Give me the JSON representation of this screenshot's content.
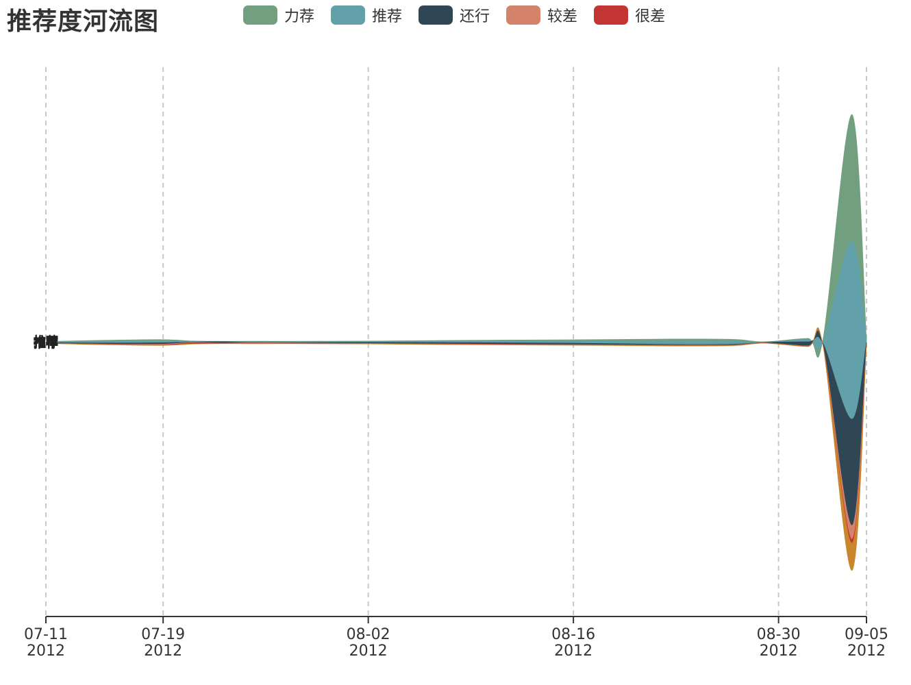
{
  "title": "推荐度河流图",
  "legend": [
    {
      "name": "力荐",
      "color": "#739f81"
    },
    {
      "name": "推荐",
      "color": "#62a0aa"
    },
    {
      "name": "还行",
      "color": "#2f4655"
    },
    {
      "name": "较差",
      "color": "#d4836a"
    },
    {
      "name": "很差",
      "color": "#c33533"
    }
  ],
  "chart_data": {
    "type": "area",
    "subtype": "themeRiver",
    "title": "推荐度河流图",
    "x_axis": {
      "type": "time",
      "range": [
        "2012-07-11",
        "2012-09-05"
      ],
      "ticks": [
        {
          "date": "2012-07-11",
          "line1": "07-11",
          "line2": "2012"
        },
        {
          "date": "2012-07-19",
          "line1": "07-19",
          "line2": "2012"
        },
        {
          "date": "2012-08-02",
          "line1": "08-02",
          "line2": "2012"
        },
        {
          "date": "2012-08-16",
          "line1": "08-16",
          "line2": "2012"
        },
        {
          "date": "2012-08-30",
          "line1": "08-30",
          "line2": "2012"
        },
        {
          "date": "2012-09-05",
          "line1": "09-05",
          "line2": "2012"
        }
      ],
      "grid_lines": "dashed"
    },
    "dates": [
      "2012-07-11",
      "2012-07-15",
      "2012-07-19",
      "2012-07-21",
      "2012-07-23",
      "2012-07-25",
      "2012-07-29",
      "2012-08-02",
      "2012-08-09",
      "2012-08-16",
      "2012-08-23",
      "2012-08-27",
      "2012-08-29",
      "2012-09-01",
      "2012-09-02",
      "2012-09-04",
      "2012-09-05"
    ],
    "series": [
      {
        "name": "力荐",
        "values": [
          0.5,
          2,
          1.5,
          0.5,
          0.3,
          0.5,
          0.8,
          1,
          1.5,
          2,
          3,
          3,
          0.5,
          2,
          0.5,
          185,
          2
        ]
      },
      {
        "name": "推荐",
        "values": [
          1,
          2,
          3,
          1,
          0.3,
          1,
          1,
          1,
          2,
          3,
          5,
          4,
          0.5,
          3,
          0.5,
          260,
          2
        ]
      },
      {
        "name": "还行",
        "values": [
          0.8,
          1.5,
          2,
          0.5,
          2,
          0.5,
          1,
          1.5,
          2,
          2,
          1,
          1,
          0.5,
          6,
          0.5,
          155,
          3
        ]
      },
      {
        "name": "较差",
        "values": [
          0.3,
          0.5,
          1,
          0.8,
          0.3,
          1,
          0.5,
          0.5,
          0.5,
          0.5,
          0.5,
          0.5,
          0.3,
          0.5,
          0.3,
          20,
          1
        ]
      },
      {
        "name": "很差",
        "values": [
          0.2,
          0.3,
          0.5,
          1.5,
          0.5,
          0.5,
          0.3,
          0.3,
          0.3,
          0.3,
          0.3,
          0.3,
          0.2,
          0.3,
          0.2,
          6,
          0.5
        ]
      },
      {
        "name": "",
        "color": "#c9862c",
        "values": [
          0.2,
          0.3,
          0.5,
          0.3,
          0.2,
          0.3,
          0.2,
          0.2,
          0.3,
          0.3,
          0.5,
          0.3,
          0.2,
          0.3,
          0.2,
          40,
          1
        ]
      }
    ],
    "stream_label": "推荐",
    "outline_color": "#c9862c"
  }
}
